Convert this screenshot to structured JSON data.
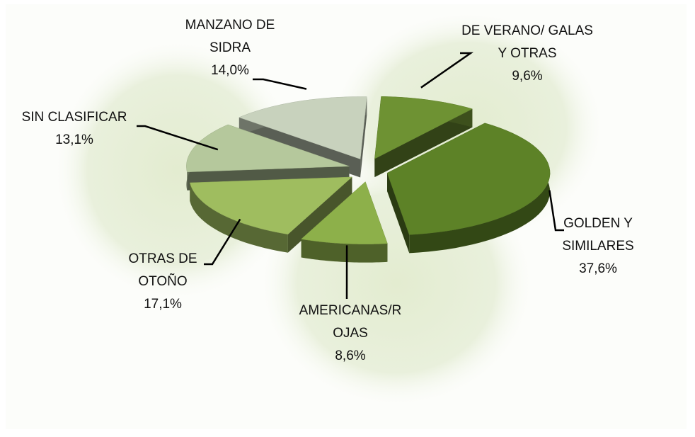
{
  "chart_data": {
    "type": "pie3d",
    "categories": [
      "DE VERANO/ GALAS Y OTRAS",
      "GOLDEN Y SIMILARES",
      "AMERICANAS/R OJAS",
      "OTRAS DE OTOÑO",
      "SIN CLASIFICAR",
      "MANZANO DE SIDRA"
    ],
    "values": [
      9.6,
      37.6,
      8.6,
      17.1,
      13.1,
      14.0
    ],
    "value_labels": [
      "9,6%",
      "37,6%",
      "8,6%",
      "17,1%",
      "13,1%",
      "14,0%"
    ],
    "colors": [
      "#6e9233",
      "#5d8227",
      "#8db04a",
      "#9fbd5f",
      "#b5c89c",
      "#c8d2bd"
    ]
  }
}
